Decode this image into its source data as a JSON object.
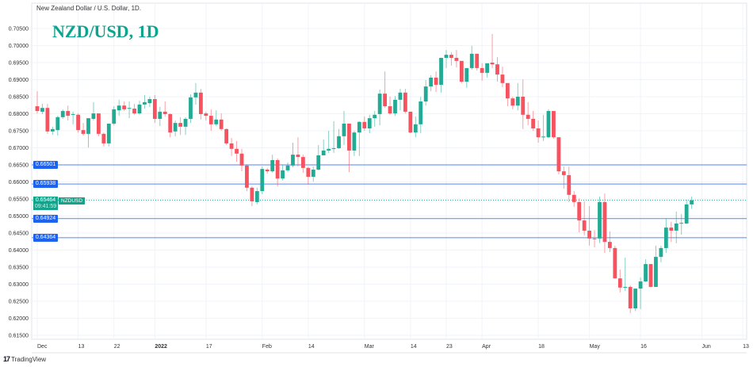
{
  "header": {
    "subtitle": "New Zealand Dollar / U.S. Dollar, 1D.",
    "title": "NZD/USD, 1D"
  },
  "footer": {
    "brand": "TradingView",
    "logo_icon": "tradingview-logo-icon"
  },
  "colors": {
    "up": "#22ab94",
    "down": "#f7525f",
    "level_line": "#1e62f0",
    "current_price": "#15a38c",
    "grid": "#f0f3fa"
  },
  "current": {
    "price": "0.65464",
    "countdown": "09:41:59",
    "symbol": "NZDUSD"
  },
  "chart_data": {
    "type": "candlestick",
    "title": "NZD/USD, 1D",
    "ylim": [
      0.6125,
      0.7085
    ],
    "grid": true,
    "y_ticks": [
      "0.61500",
      "0.62000",
      "0.62500",
      "0.63000",
      "0.63500",
      "0.64000",
      "0.64500",
      "0.65000",
      "0.65500",
      "0.66000",
      "0.66500",
      "0.67000",
      "0.67500",
      "0.68000",
      "0.68500",
      "0.69000",
      "0.69500",
      "0.70000",
      "0.70500"
    ],
    "x_ticks": [
      {
        "label": "Dec",
        "date": "2021-12-01"
      },
      {
        "label": "13",
        "date": "2021-12-13"
      },
      {
        "label": "22",
        "date": "2021-12-22"
      },
      {
        "label": "2022",
        "date": "2022-01-03",
        "bold": true
      },
      {
        "label": "17",
        "date": "2022-01-17"
      },
      {
        "label": "Feb",
        "date": "2022-02-01"
      },
      {
        "label": "14",
        "date": "2022-02-14"
      },
      {
        "label": "Mar",
        "date": "2022-03-01"
      },
      {
        "label": "14",
        "date": "2022-03-14"
      },
      {
        "label": "23",
        "date": "2022-03-23"
      },
      {
        "label": "Apr",
        "date": "2022-04-01"
      },
      {
        "label": "18",
        "date": "2022-04-18"
      },
      {
        "label": "May",
        "date": "2022-05-02"
      },
      {
        "label": "16",
        "date": "2022-05-16"
      },
      {
        "label": "Jun",
        "date": "2022-06-01"
      },
      {
        "label": "13",
        "date": "2022-06-13"
      }
    ],
    "levels": [
      "0.66501",
      "0.65938",
      "0.64924",
      "0.64364"
    ],
    "candles_fields": [
      "date",
      "open",
      "high",
      "low",
      "close"
    ],
    "candles": [
      [
        "2021-12-01",
        0.6822,
        0.6866,
        0.6801,
        0.6808
      ],
      [
        "2021-12-02",
        0.6806,
        0.6829,
        0.6799,
        0.6817
      ],
      [
        "2021-12-03",
        0.6817,
        0.6829,
        0.6741,
        0.6748
      ],
      [
        "2021-12-06",
        0.6748,
        0.6762,
        0.6738,
        0.6755
      ],
      [
        "2021-12-07",
        0.6752,
        0.6794,
        0.6736,
        0.679
      ],
      [
        "2021-12-08",
        0.679,
        0.6813,
        0.6785,
        0.6808
      ],
      [
        "2021-12-09",
        0.6808,
        0.6824,
        0.678,
        0.6794
      ],
      [
        "2021-12-10",
        0.6797,
        0.6806,
        0.6769,
        0.6799
      ],
      [
        "2021-12-13",
        0.6797,
        0.6801,
        0.6745,
        0.6752
      ],
      [
        "2021-12-14",
        0.6752,
        0.6773,
        0.6736,
        0.6741
      ],
      [
        "2021-12-15",
        0.6741,
        0.6787,
        0.6701,
        0.6787
      ],
      [
        "2021-12-16",
        0.6785,
        0.6834,
        0.678,
        0.6801
      ],
      [
        "2021-12-17",
        0.6801,
        0.6801,
        0.6734,
        0.6741
      ],
      [
        "2021-12-20",
        0.6741,
        0.6745,
        0.6704,
        0.6713
      ],
      [
        "2021-12-21",
        0.6713,
        0.6771,
        0.6704,
        0.6771
      ],
      [
        "2021-12-22",
        0.6771,
        0.6822,
        0.6766,
        0.6813
      ],
      [
        "2021-12-23",
        0.681,
        0.6841,
        0.6794,
        0.6824
      ],
      [
        "2021-12-24",
        0.6824,
        0.6836,
        0.6808,
        0.6813
      ],
      [
        "2021-12-27",
        0.6815,
        0.6836,
        0.6787,
        0.6817
      ],
      [
        "2021-12-28",
        0.6815,
        0.6829,
        0.6797,
        0.6801
      ],
      [
        "2021-12-29",
        0.6801,
        0.6838,
        0.6797,
        0.6827
      ],
      [
        "2021-12-30",
        0.6827,
        0.6855,
        0.6815,
        0.6834
      ],
      [
        "2021-12-31",
        0.6831,
        0.685,
        0.682,
        0.6843
      ],
      [
        "2022-01-03",
        0.6843,
        0.6855,
        0.6773,
        0.6785
      ],
      [
        "2022-01-04",
        0.6785,
        0.682,
        0.6764,
        0.6806
      ],
      [
        "2022-01-05",
        0.6806,
        0.6836,
        0.6792,
        0.6799
      ],
      [
        "2022-01-06",
        0.6799,
        0.6801,
        0.6731,
        0.6745
      ],
      [
        "2022-01-07",
        0.6748,
        0.678,
        0.6734,
        0.6773
      ],
      [
        "2022-01-10",
        0.6773,
        0.679,
        0.6738,
        0.6762
      ],
      [
        "2022-01-11",
        0.6762,
        0.679,
        0.6738,
        0.6785
      ],
      [
        "2022-01-12",
        0.6785,
        0.6857,
        0.6773,
        0.6848
      ],
      [
        "2022-01-13",
        0.6848,
        0.689,
        0.6827,
        0.6862
      ],
      [
        "2022-01-14",
        0.6862,
        0.6873,
        0.6783,
        0.6799
      ],
      [
        "2022-01-17",
        0.6801,
        0.6806,
        0.678,
        0.6794
      ],
      [
        "2022-01-18",
        0.6794,
        0.6813,
        0.675,
        0.6769
      ],
      [
        "2022-01-19",
        0.6769,
        0.681,
        0.6764,
        0.6783
      ],
      [
        "2022-01-20",
        0.6783,
        0.6801,
        0.675,
        0.6755
      ],
      [
        "2022-01-21",
        0.6755,
        0.6757,
        0.6708,
        0.6713
      ],
      [
        "2022-01-24",
        0.6713,
        0.6729,
        0.6676,
        0.6697
      ],
      [
        "2022-01-25",
        0.6697,
        0.672,
        0.6659,
        0.6683
      ],
      [
        "2022-01-26",
        0.6683,
        0.6697,
        0.6631,
        0.6648
      ],
      [
        "2022-01-27",
        0.6648,
        0.6652,
        0.6573,
        0.6583
      ],
      [
        "2022-01-28",
        0.6583,
        0.6587,
        0.6529,
        0.6543
      ],
      [
        "2022-01-31",
        0.6541,
        0.6583,
        0.6534,
        0.6573
      ],
      [
        "2022-02-01",
        0.6573,
        0.6645,
        0.6564,
        0.6638
      ],
      [
        "2022-02-02",
        0.6636,
        0.6641,
        0.6624,
        0.6631
      ],
      [
        "2022-02-03",
        0.6631,
        0.668,
        0.6627,
        0.6664
      ],
      [
        "2022-02-04",
        0.6664,
        0.6669,
        0.6587,
        0.661
      ],
      [
        "2022-02-07",
        0.661,
        0.665,
        0.6604,
        0.6634
      ],
      [
        "2022-02-08",
        0.6634,
        0.6657,
        0.6629,
        0.6648
      ],
      [
        "2022-02-09",
        0.6648,
        0.6715,
        0.6643,
        0.668
      ],
      [
        "2022-02-10",
        0.668,
        0.6731,
        0.6645,
        0.6673
      ],
      [
        "2022-02-11",
        0.6673,
        0.668,
        0.6627,
        0.6641
      ],
      [
        "2022-02-14",
        0.6641,
        0.6645,
        0.6592,
        0.6615
      ],
      [
        "2022-02-15",
        0.6615,
        0.6645,
        0.6601,
        0.6636
      ],
      [
        "2022-02-16",
        0.6636,
        0.6708,
        0.6634,
        0.6678
      ],
      [
        "2022-02-17",
        0.6678,
        0.6724,
        0.6678,
        0.6692
      ],
      [
        "2022-02-18",
        0.6692,
        0.675,
        0.6685,
        0.6697
      ],
      [
        "2022-02-21",
        0.6697,
        0.6778,
        0.6685,
        0.6699
      ],
      [
        "2022-02-22",
        0.6699,
        0.6755,
        0.6697,
        0.6734
      ],
      [
        "2022-02-23",
        0.6734,
        0.6808,
        0.6708,
        0.6771
      ],
      [
        "2022-02-24",
        0.6771,
        0.6771,
        0.6629,
        0.6692
      ],
      [
        "2022-02-25",
        0.6692,
        0.675,
        0.6676,
        0.6745
      ],
      [
        "2022-02-28",
        0.6745,
        0.6778,
        0.6676,
        0.6776
      ],
      [
        "2022-03-01",
        0.6776,
        0.6792,
        0.675,
        0.6757
      ],
      [
        "2022-03-02",
        0.6757,
        0.6797,
        0.6743,
        0.6787
      ],
      [
        "2022-03-03",
        0.6787,
        0.6808,
        0.6762,
        0.6797
      ],
      [
        "2022-03-04",
        0.6799,
        0.6871,
        0.6766,
        0.6859
      ],
      [
        "2022-03-07",
        0.6859,
        0.6924,
        0.6817,
        0.6822
      ],
      [
        "2022-03-08",
        0.6822,
        0.685,
        0.6797,
        0.6801
      ],
      [
        "2022-03-09",
        0.6801,
        0.6852,
        0.6794,
        0.6841
      ],
      [
        "2022-03-10",
        0.6841,
        0.6873,
        0.681,
        0.6862
      ],
      [
        "2022-03-11",
        0.6862,
        0.6873,
        0.6801,
        0.6806
      ],
      [
        "2022-03-14",
        0.6806,
        0.6806,
        0.6743,
        0.6745
      ],
      [
        "2022-03-15",
        0.6745,
        0.6792,
        0.6731,
        0.6769
      ],
      [
        "2022-03-16",
        0.6769,
        0.685,
        0.6743,
        0.6836
      ],
      [
        "2022-03-17",
        0.6836,
        0.6899,
        0.6824,
        0.688
      ],
      [
        "2022-03-18",
        0.688,
        0.6913,
        0.6866,
        0.6906
      ],
      [
        "2022-03-21",
        0.6906,
        0.6924,
        0.6864,
        0.6885
      ],
      [
        "2022-03-22",
        0.6885,
        0.6964,
        0.6862,
        0.6964
      ],
      [
        "2022-03-23",
        0.6964,
        0.6987,
        0.6934,
        0.6973
      ],
      [
        "2022-03-24",
        0.6973,
        0.698,
        0.6941,
        0.6964
      ],
      [
        "2022-03-25",
        0.6964,
        0.6987,
        0.6936,
        0.6955
      ],
      [
        "2022-03-28",
        0.6955,
        0.6955,
        0.689,
        0.6894
      ],
      [
        "2022-03-29",
        0.6894,
        0.6934,
        0.6876,
        0.6934
      ],
      [
        "2022-03-30",
        0.6934,
        0.6999,
        0.6929,
        0.6976
      ],
      [
        "2022-03-31",
        0.6976,
        0.6976,
        0.6927,
        0.6934
      ],
      [
        "2022-04-01",
        0.6934,
        0.6948,
        0.6897,
        0.692
      ],
      [
        "2022-04-04",
        0.692,
        0.6948,
        0.6906,
        0.6948
      ],
      [
        "2022-04-05",
        0.695,
        0.7034,
        0.6934,
        0.6945
      ],
      [
        "2022-04-06",
        0.6945,
        0.6966,
        0.6894,
        0.6915
      ],
      [
        "2022-04-07",
        0.6915,
        0.6938,
        0.6878,
        0.689
      ],
      [
        "2022-04-08",
        0.689,
        0.689,
        0.6822,
        0.6845
      ],
      [
        "2022-04-11",
        0.6845,
        0.685,
        0.6813,
        0.6824
      ],
      [
        "2022-04-12",
        0.6824,
        0.689,
        0.681,
        0.685
      ],
      [
        "2022-04-13",
        0.685,
        0.6901,
        0.6755,
        0.6797
      ],
      [
        "2022-04-14",
        0.6797,
        0.6834,
        0.6766,
        0.6785
      ],
      [
        "2022-04-15",
        0.6785,
        0.6808,
        0.675,
        0.6757
      ],
      [
        "2022-04-18",
        0.6757,
        0.678,
        0.6715,
        0.6731
      ],
      [
        "2022-04-19",
        0.6731,
        0.6797,
        0.672,
        0.6733
      ],
      [
        "2022-04-20",
        0.6731,
        0.6813,
        0.6729,
        0.6808
      ],
      [
        "2022-04-21",
        0.6808,
        0.6808,
        0.6727,
        0.6731
      ],
      [
        "2022-04-22",
        0.6731,
        0.6731,
        0.6622,
        0.6631
      ],
      [
        "2022-04-25",
        0.6631,
        0.6645,
        0.658,
        0.662
      ],
      [
        "2022-04-26",
        0.662,
        0.6645,
        0.6541,
        0.6562
      ],
      [
        "2022-04-27",
        0.6562,
        0.6573,
        0.6527,
        0.6541
      ],
      [
        "2022-04-28",
        0.6541,
        0.6552,
        0.6452,
        0.6487
      ],
      [
        "2022-04-29",
        0.6487,
        0.6543,
        0.6443,
        0.6457
      ],
      [
        "2022-05-02",
        0.6457,
        0.6529,
        0.6413,
        0.6434
      ],
      [
        "2022-05-03",
        0.6434,
        0.6459,
        0.6408,
        0.6432
      ],
      [
        "2022-05-04",
        0.6434,
        0.6557,
        0.6421,
        0.6541
      ],
      [
        "2022-05-05",
        0.6541,
        0.6566,
        0.6392,
        0.6424
      ],
      [
        "2022-05-06",
        0.6424,
        0.6455,
        0.6394,
        0.6406
      ],
      [
        "2022-05-09",
        0.6406,
        0.6413,
        0.6317,
        0.6317
      ],
      [
        "2022-05-10",
        0.6317,
        0.6343,
        0.6276,
        0.629
      ],
      [
        "2022-05-11",
        0.629,
        0.6378,
        0.628,
        0.6292
      ],
      [
        "2022-05-12",
        0.6292,
        0.6297,
        0.6215,
        0.6229
      ],
      [
        "2022-05-13",
        0.6229,
        0.6287,
        0.6221,
        0.6287
      ],
      [
        "2022-05-16",
        0.6287,
        0.632,
        0.6227,
        0.6308
      ],
      [
        "2022-05-17",
        0.6308,
        0.6373,
        0.6306,
        0.6359
      ],
      [
        "2022-05-18",
        0.6359,
        0.6359,
        0.629,
        0.6292
      ],
      [
        "2022-05-19",
        0.6292,
        0.6413,
        0.6292,
        0.638
      ],
      [
        "2022-05-20",
        0.638,
        0.6413,
        0.6364,
        0.6406
      ],
      [
        "2022-05-23",
        0.6406,
        0.6492,
        0.6392,
        0.6466
      ],
      [
        "2022-05-24",
        0.6466,
        0.6483,
        0.6424,
        0.6457
      ],
      [
        "2022-05-25",
        0.6457,
        0.6513,
        0.642,
        0.6478
      ],
      [
        "2022-05-26",
        0.6478,
        0.6506,
        0.6445,
        0.648
      ],
      [
        "2022-05-27",
        0.6478,
        0.6548,
        0.6476,
        0.6534
      ],
      [
        "2022-05-30",
        0.6534,
        0.6557,
        0.6521,
        0.6546
      ]
    ]
  }
}
